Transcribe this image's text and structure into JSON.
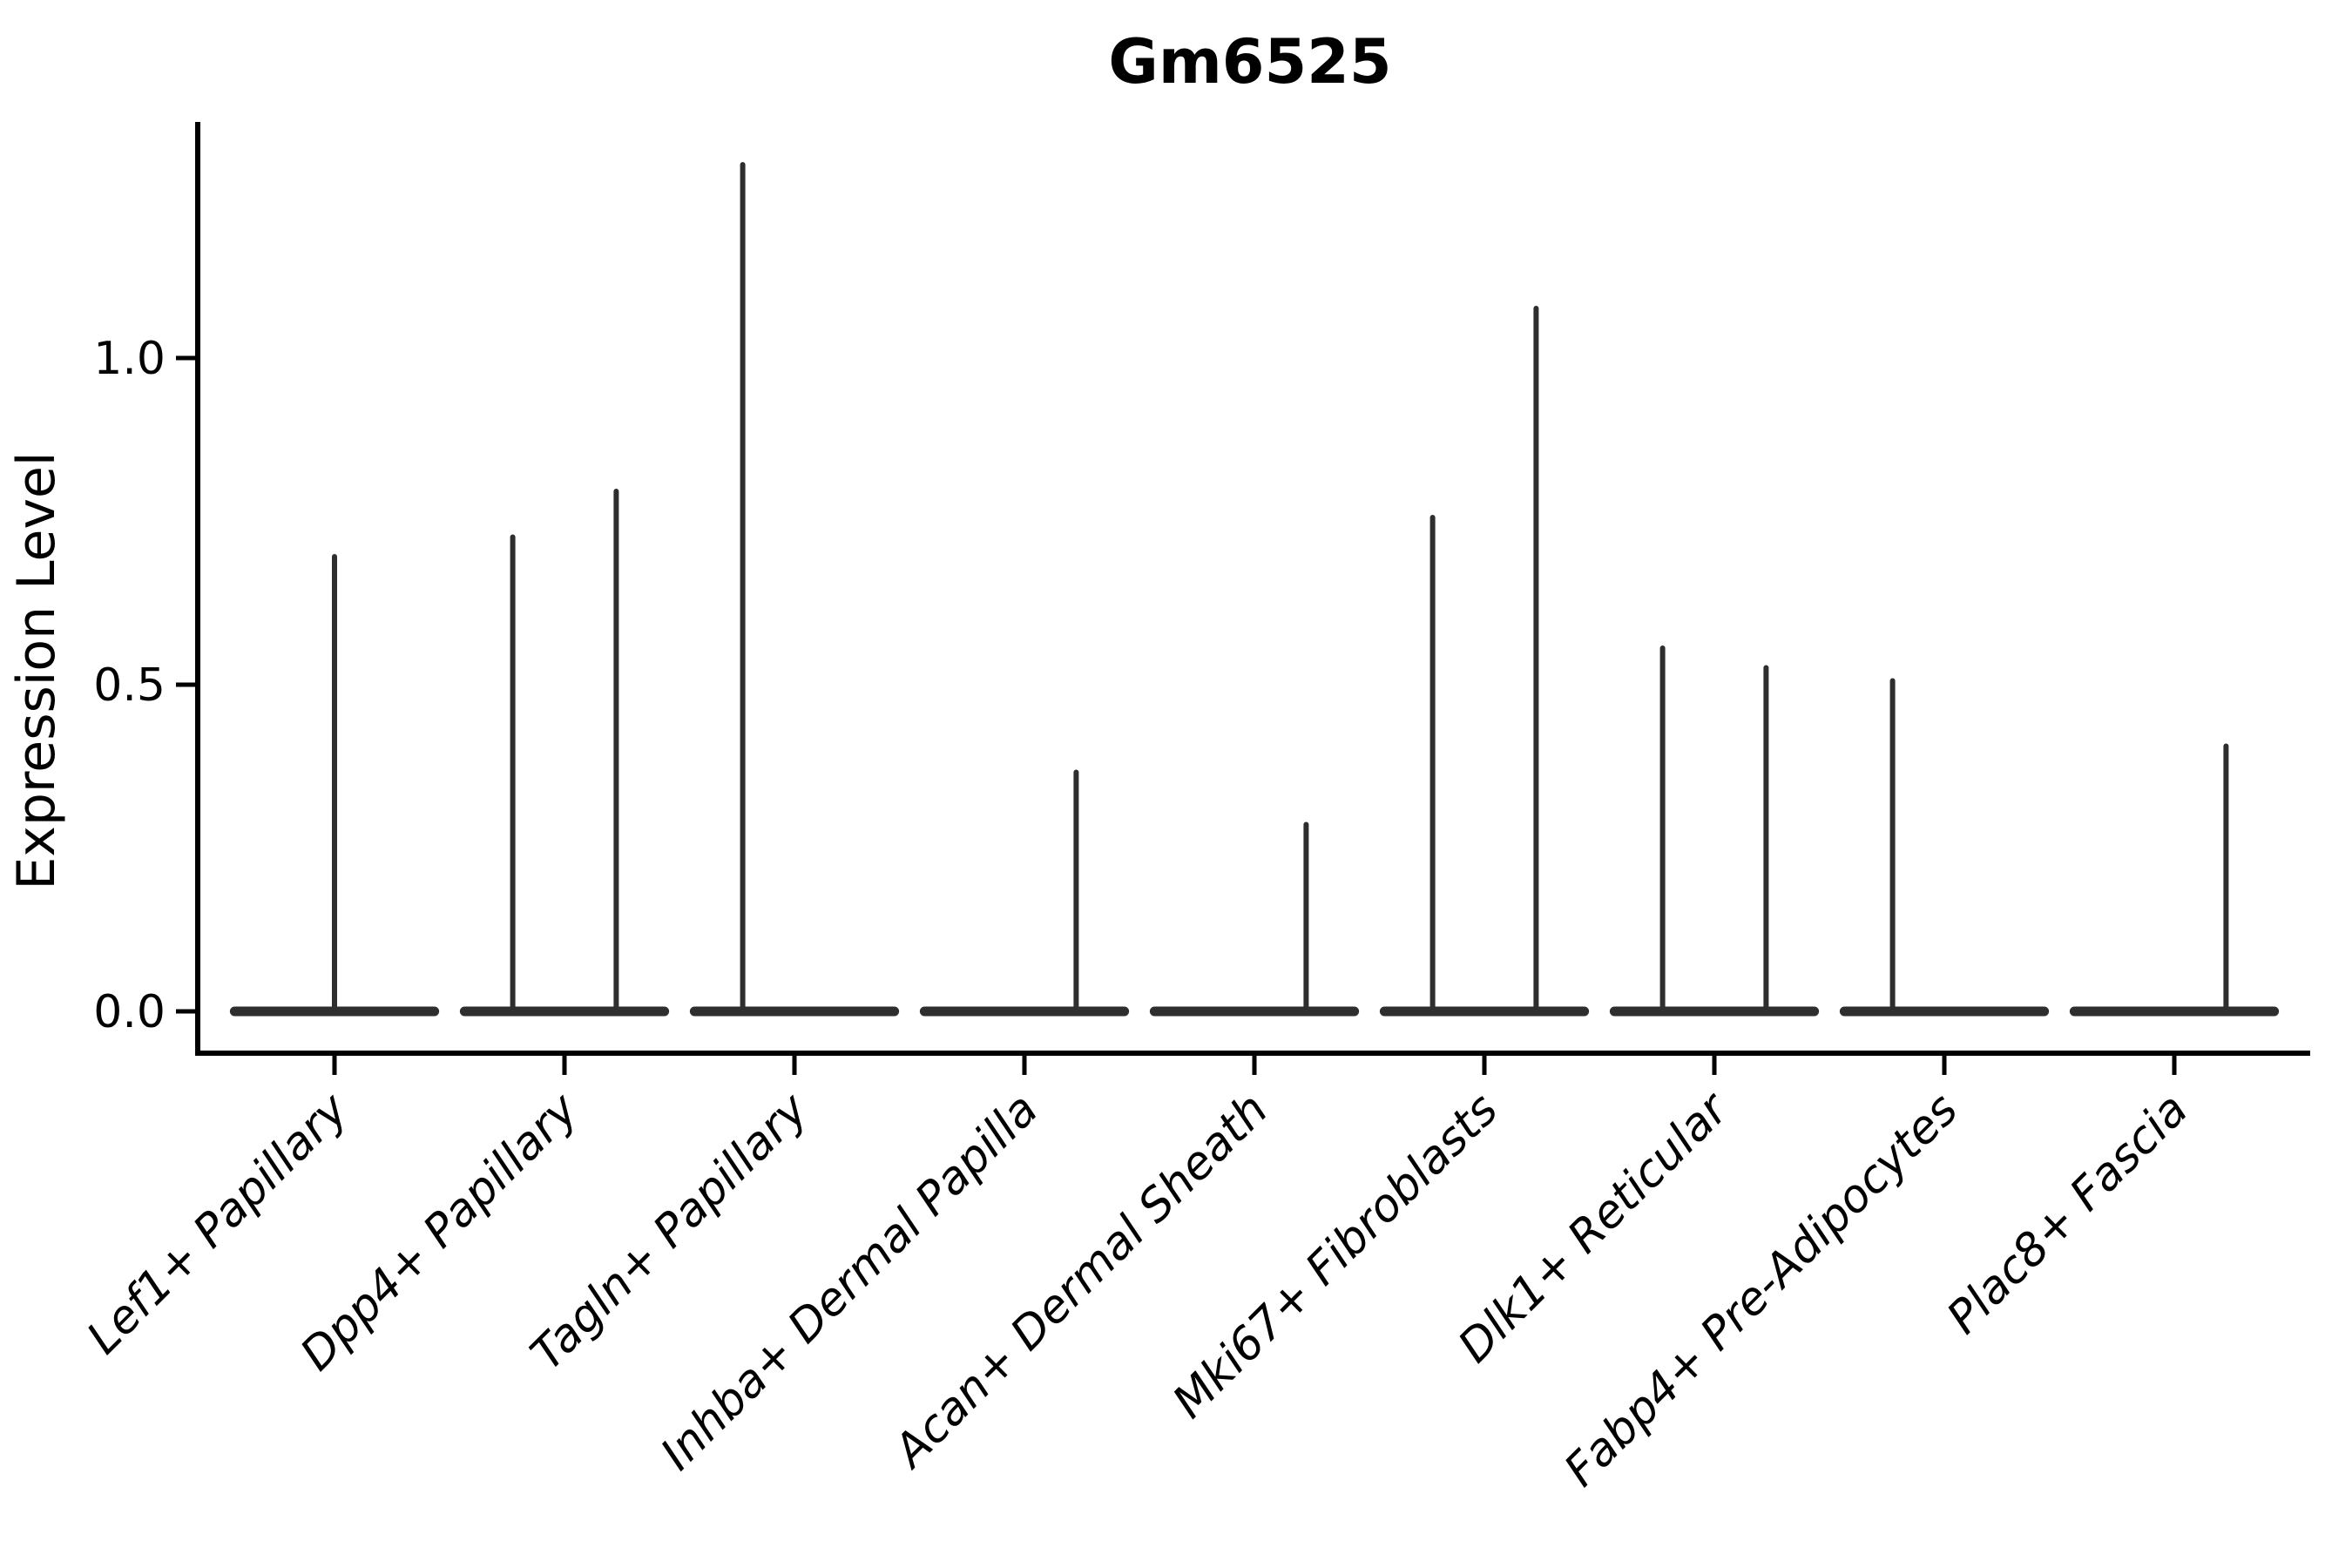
{
  "title": "Gm6525",
  "colors": {
    "violin": "#2e2e2e",
    "axis": "#000000",
    "background": "#ffffff",
    "text": "#000000"
  },
  "chart_data": {
    "type": "violin",
    "title": "Gm6525",
    "xlabel": "",
    "ylabel": "Expression Level",
    "grid": false,
    "legend": null,
    "ylim": [
      -0.06,
      1.36
    ],
    "yticks": [
      {
        "value": 0.0,
        "label": "0.0"
      },
      {
        "value": 0.5,
        "label": "0.5"
      },
      {
        "value": 1.0,
        "label": "1.0"
      }
    ],
    "categories": [
      "Lef1+ Papillary",
      "Dpp4+ Papillary",
      "Tagln+ Papillary",
      "Inhba+ Dermal Papilla",
      "Acan+ Dermal Sheath",
      "Mki67+ Fibroblasts",
      "Dlk1+ Reticular",
      "Fabp4+ Pre-Adipocytes",
      "Plac8+ Fascia"
    ],
    "violins": [
      {
        "category": "Lef1+ Papillary",
        "base_half_width": 0.455,
        "spikes": [
          {
            "offset": 0.0,
            "max": 0.7
          }
        ]
      },
      {
        "category": "Dpp4+ Papillary",
        "base_half_width": 0.455,
        "spikes": [
          {
            "offset": -0.225,
            "max": 0.73
          },
          {
            "offset": 0.225,
            "max": 0.8
          }
        ]
      },
      {
        "category": "Tagln+ Papillary",
        "base_half_width": 0.455,
        "spikes": [
          {
            "offset": -0.225,
            "max": 1.3
          }
        ]
      },
      {
        "category": "Inhba+ Dermal Papilla",
        "base_half_width": 0.455,
        "spikes": [
          {
            "offset": 0.225,
            "max": 0.37
          }
        ]
      },
      {
        "category": "Acan+ Dermal Sheath",
        "base_half_width": 0.455,
        "spikes": [
          {
            "offset": 0.225,
            "max": 0.29
          }
        ]
      },
      {
        "category": "Mki67+ Fibroblasts",
        "base_half_width": 0.455,
        "spikes": [
          {
            "offset": -0.225,
            "max": 0.76
          },
          {
            "offset": 0.225,
            "max": 1.08
          }
        ]
      },
      {
        "category": "Dlk1+ Reticular",
        "base_half_width": 0.455,
        "spikes": [
          {
            "offset": -0.225,
            "max": 0.56
          },
          {
            "offset": 0.225,
            "max": 0.53
          }
        ]
      },
      {
        "category": "Fabp4+ Pre-Adipocytes",
        "base_half_width": 0.455,
        "spikes": [
          {
            "offset": -0.225,
            "max": 0.51
          }
        ]
      },
      {
        "category": "Plac8+ Fascia",
        "base_half_width": 0.455,
        "spikes": [
          {
            "offset": 0.225,
            "max": 0.41
          }
        ]
      }
    ]
  }
}
